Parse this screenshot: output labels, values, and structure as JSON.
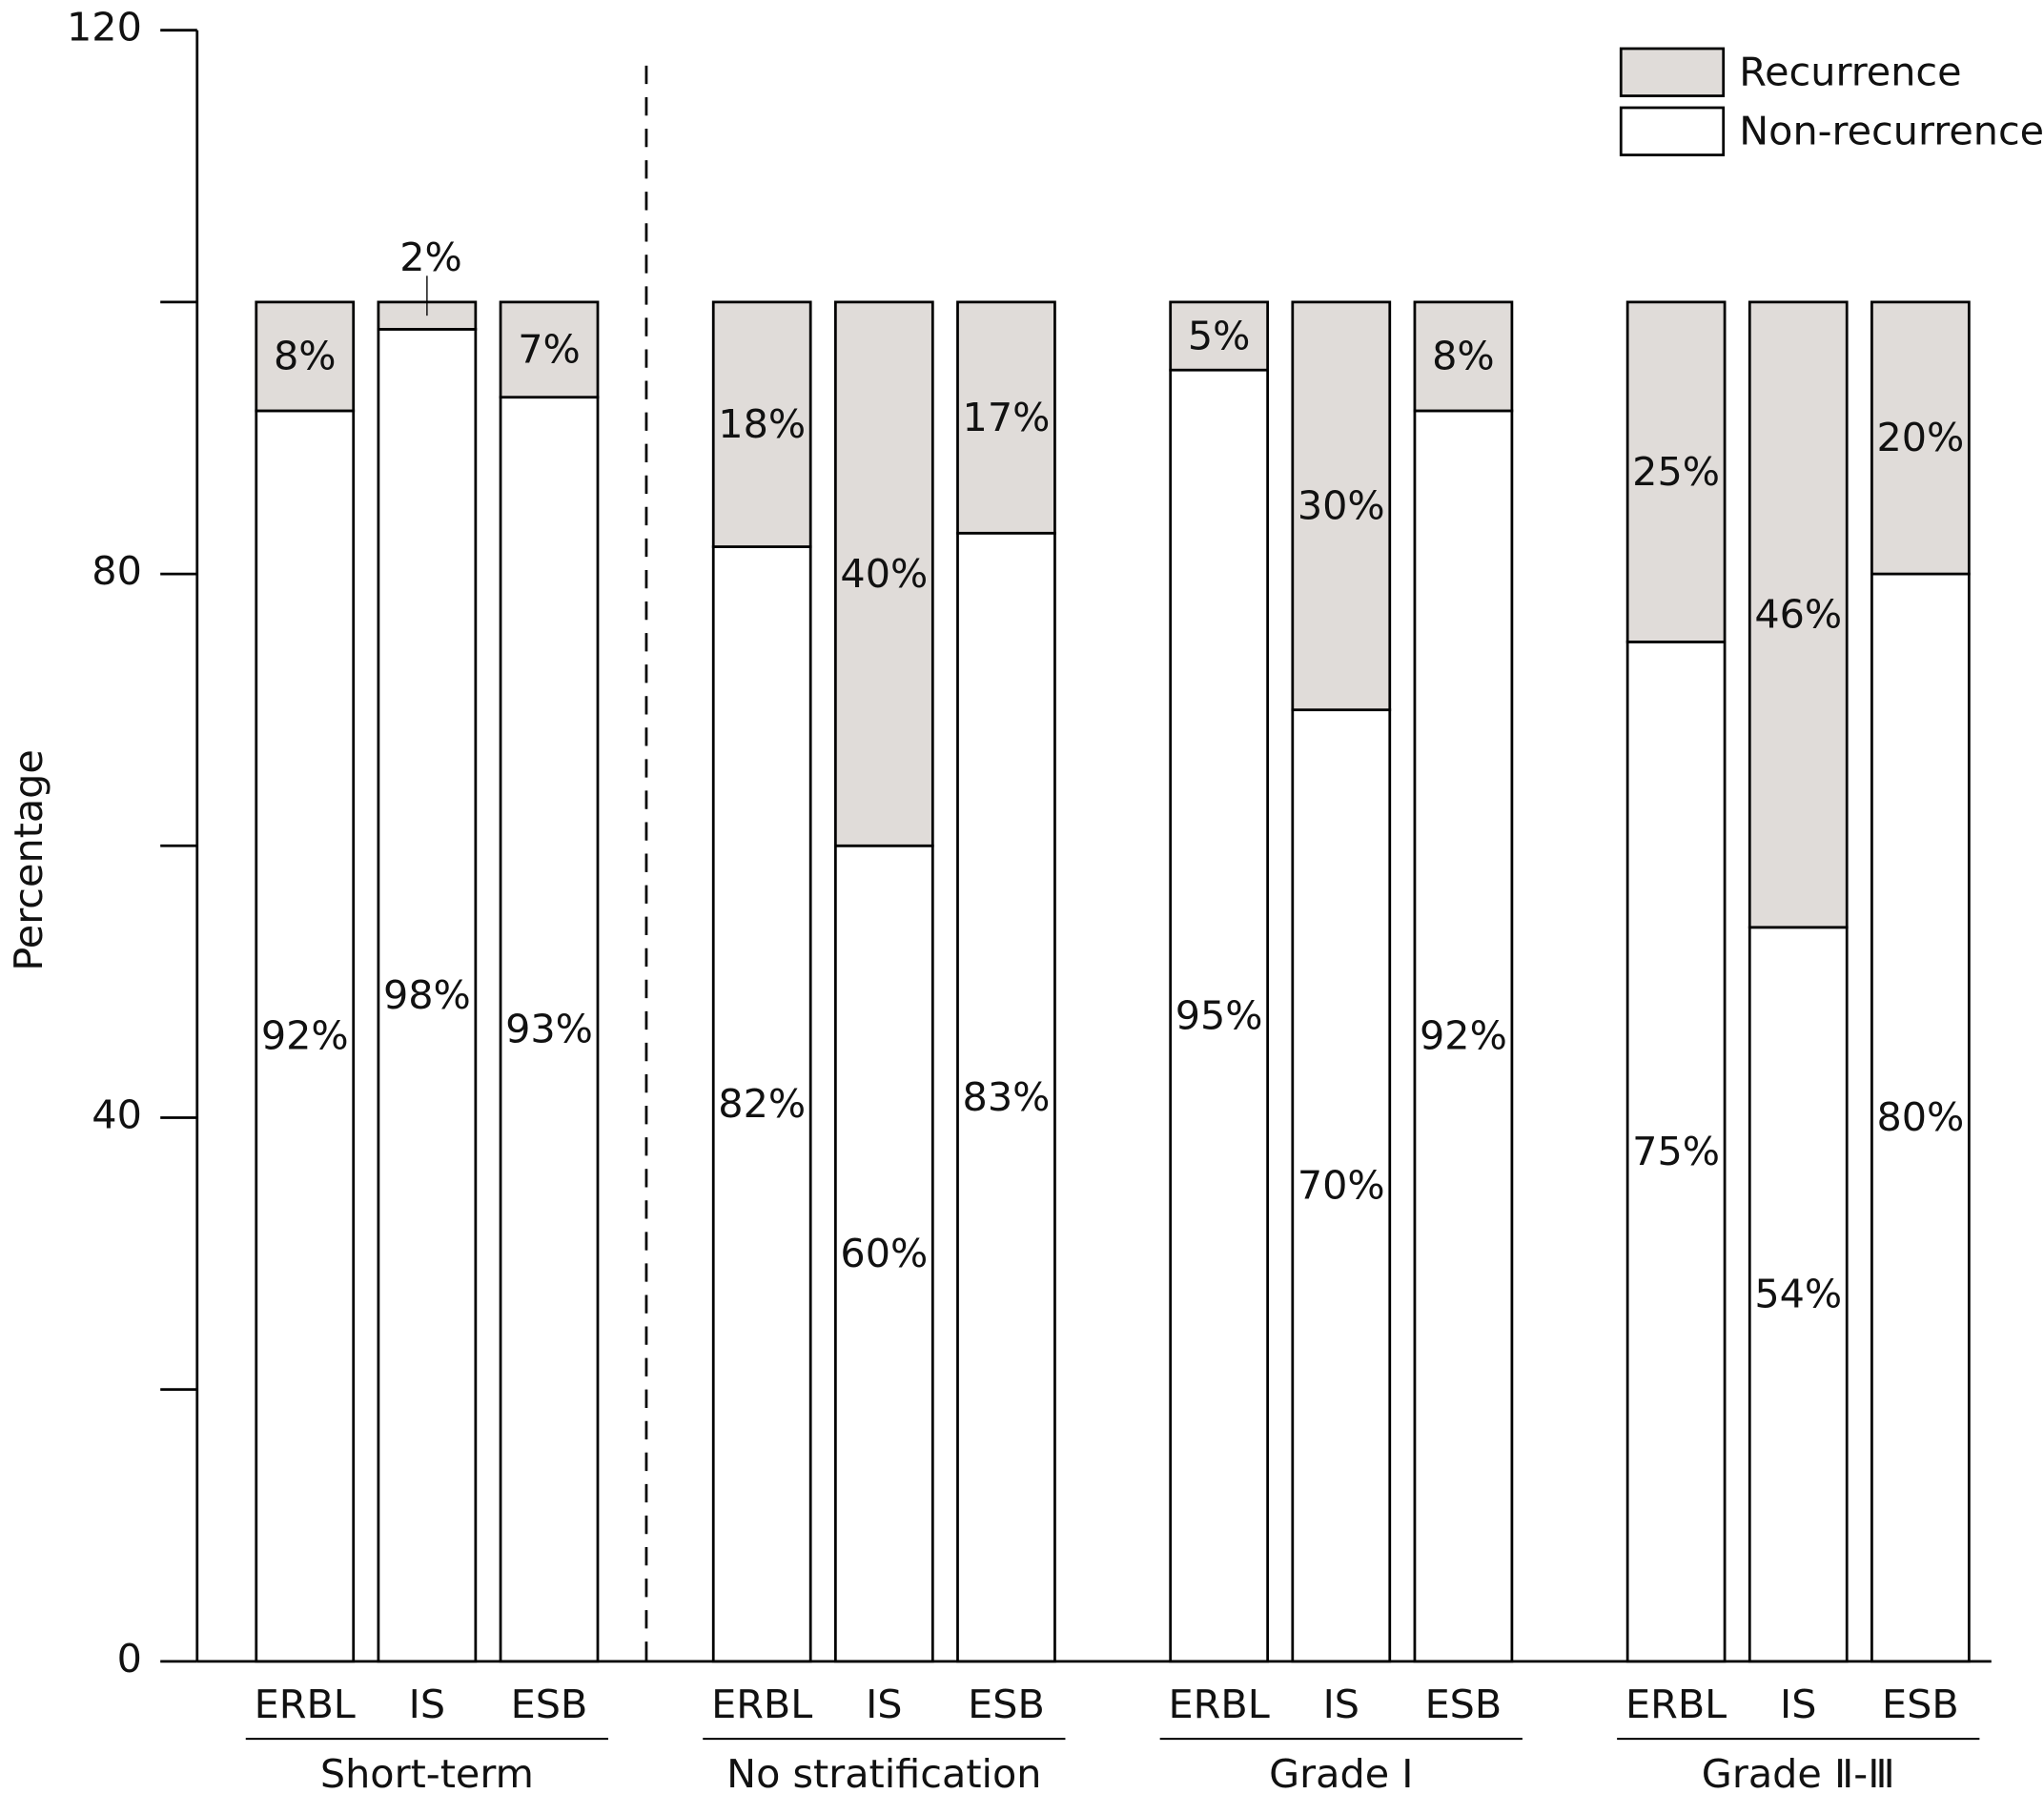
{
  "chart_data": {
    "type": "stacked_bar",
    "y_label": "Percentage",
    "categories": [
      "ERBL",
      "IS",
      "ESB",
      "ERBL",
      "IS",
      "ESB",
      "ERBL",
      "IS",
      "ESB",
      "ERBL",
      "IS",
      "ESB"
    ],
    "groups": [
      "Short-term",
      "No stratification",
      "Grade Ⅰ",
      "Grade Ⅱ-Ⅲ"
    ],
    "series": [
      {
        "name": "Non-recurrence",
        "color": "#ffffff",
        "values": [
          92,
          98,
          93,
          82,
          60,
          83,
          95,
          70,
          92,
          75,
          54,
          80
        ],
        "value_labels": [
          "92%",
          "98%",
          "93%",
          "82%",
          "60%",
          "83%",
          "95%",
          "70%",
          "92%",
          "75%",
          "54%",
          "80%"
        ]
      },
      {
        "name": "Recurrence",
        "color": "#e0dcd9",
        "values": [
          8,
          2,
          7,
          18,
          40,
          17,
          5,
          30,
          8,
          25,
          46,
          20
        ],
        "value_labels": [
          "8%",
          "2%",
          "7%",
          "18%",
          "40%",
          "17%",
          "5%",
          "30%",
          "8%",
          "25%",
          "46%",
          "20%"
        ]
      }
    ],
    "ylim": [
      0,
      120
    ],
    "yticks": [
      0,
      40,
      80,
      120
    ],
    "minor_yticks": [
      20,
      60,
      100
    ],
    "legend": "top-right"
  }
}
